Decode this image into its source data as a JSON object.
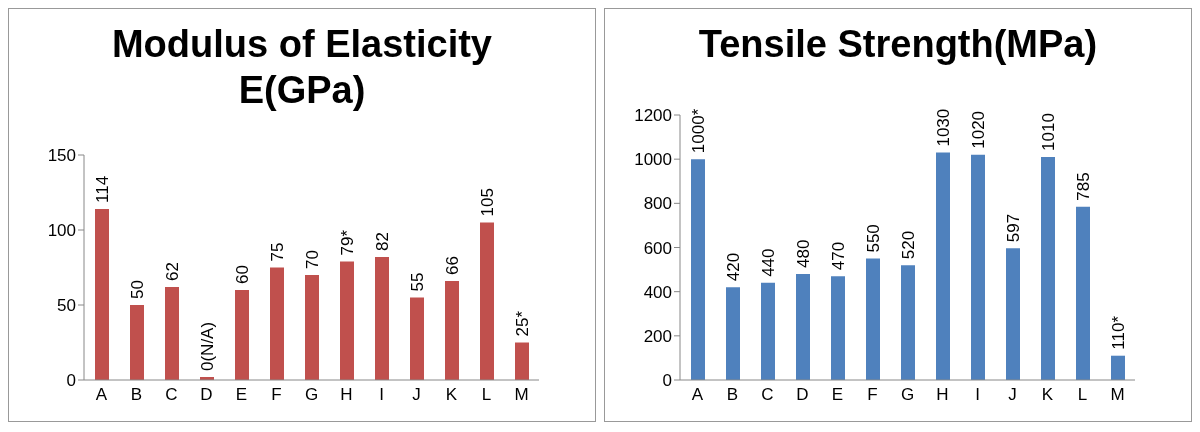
{
  "chart_data": [
    {
      "type": "bar",
      "title": "Modulus of Elasticity E(GPa)",
      "categories": [
        "A",
        "B",
        "C",
        "D",
        "E",
        "F",
        "G",
        "H",
        "I",
        "J",
        "K",
        "L",
        "M"
      ],
      "values": [
        114,
        50,
        62,
        0,
        60,
        75,
        70,
        79,
        82,
        55,
        66,
        105,
        25
      ],
      "value_labels": [
        "114",
        "50",
        "62",
        "0(N/A)",
        "60",
        "75",
        "70",
        "79*",
        "82",
        "55",
        "66",
        "105",
        "25*"
      ],
      "color": "#c0504d",
      "ylim": [
        0,
        150
      ],
      "yticks": [
        0,
        50,
        100,
        150
      ],
      "grid": false,
      "legend": false
    },
    {
      "type": "bar",
      "title": "Tensile Strength(MPa)",
      "categories": [
        "A",
        "B",
        "C",
        "D",
        "E",
        "F",
        "G",
        "H",
        "I",
        "J",
        "K",
        "L",
        "M"
      ],
      "values": [
        1000,
        420,
        440,
        480,
        470,
        550,
        520,
        1030,
        1020,
        597,
        1010,
        785,
        110
      ],
      "value_labels": [
        "1000*",
        "420",
        "440",
        "480",
        "470",
        "550",
        "520",
        "1030",
        "1020",
        "597",
        "1010",
        "785",
        "110*"
      ],
      "color": "#4f81bd",
      "ylim": [
        0,
        1200
      ],
      "yticks": [
        0,
        200,
        400,
        600,
        800,
        1000,
        1200
      ],
      "grid": false,
      "legend": false
    }
  ]
}
